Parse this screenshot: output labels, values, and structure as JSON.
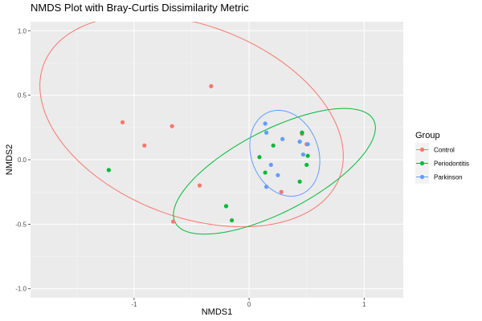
{
  "chart_data": {
    "type": "scatter",
    "title": "NMDS Plot with Bray-Curtis Dissimilarity Metric",
    "xlabel": "NMDS1",
    "ylabel": "NMDS2",
    "xlim": [
      -1.9,
      1.34
    ],
    "ylim": [
      -1.07,
      1.07
    ],
    "x_ticks": [
      -1,
      0,
      1
    ],
    "x_tick_labels": [
      "-1",
      "0",
      "1"
    ],
    "y_ticks": [
      -1.0,
      -0.5,
      0.0,
      0.5,
      1.0
    ],
    "y_tick_labels": [
      "-1.0",
      "-0.5",
      "0.0",
      "0.5",
      "1.0"
    ],
    "grid": true,
    "legend": {
      "title": "Group",
      "position": "right"
    },
    "series": [
      {
        "name": "Control",
        "color": "#F8766D",
        "points": [
          {
            "x": -0.33,
            "y": 0.57
          },
          {
            "x": -1.1,
            "y": 0.29
          },
          {
            "x": -0.67,
            "y": 0.26
          },
          {
            "x": -0.91,
            "y": 0.11
          },
          {
            "x": -0.43,
            "y": -0.2
          },
          {
            "x": 0.28,
            "y": -0.25
          },
          {
            "x": -0.66,
            "y": -0.48
          },
          {
            "x": 0.46,
            "y": 0.2
          },
          {
            "x": 0.5,
            "y": 0.12
          }
        ],
        "ellipse": {
          "cx": -0.5,
          "cy": 0.3,
          "rx": 1.36,
          "ry": 0.75,
          "angle_deg": -17
        }
      },
      {
        "name": "Periodontitis",
        "color": "#00BA38",
        "points": [
          {
            "x": -1.22,
            "y": -0.08
          },
          {
            "x": -0.2,
            "y": -0.36
          },
          {
            "x": -0.15,
            "y": -0.47
          },
          {
            "x": 0.09,
            "y": 0.02
          },
          {
            "x": 0.14,
            "y": -0.1
          },
          {
            "x": 0.21,
            "y": 0.11
          },
          {
            "x": 0.46,
            "y": 0.21
          },
          {
            "x": 0.44,
            "y": -0.17
          },
          {
            "x": 0.5,
            "y": -0.04
          },
          {
            "x": 0.51,
            "y": 0.03
          }
        ],
        "ellipse": {
          "cx": 0.22,
          "cy": -0.09,
          "rx": 0.95,
          "ry": 0.325,
          "angle_deg": 24
        }
      },
      {
        "name": "Parkinson",
        "color": "#619CFF",
        "points": [
          {
            "x": 0.14,
            "y": 0.28
          },
          {
            "x": 0.15,
            "y": 0.21
          },
          {
            "x": 0.29,
            "y": 0.16
          },
          {
            "x": 0.44,
            "y": 0.14
          },
          {
            "x": 0.51,
            "y": 0.12
          },
          {
            "x": 0.47,
            "y": 0.04
          },
          {
            "x": 0.19,
            "y": -0.04
          },
          {
            "x": 0.25,
            "y": -0.12
          },
          {
            "x": 0.15,
            "y": -0.21
          }
        ],
        "ellipse": {
          "cx": 0.31,
          "cy": 0.05,
          "rx": 0.285,
          "ry": 0.35,
          "angle_deg": 32
        }
      }
    ]
  }
}
